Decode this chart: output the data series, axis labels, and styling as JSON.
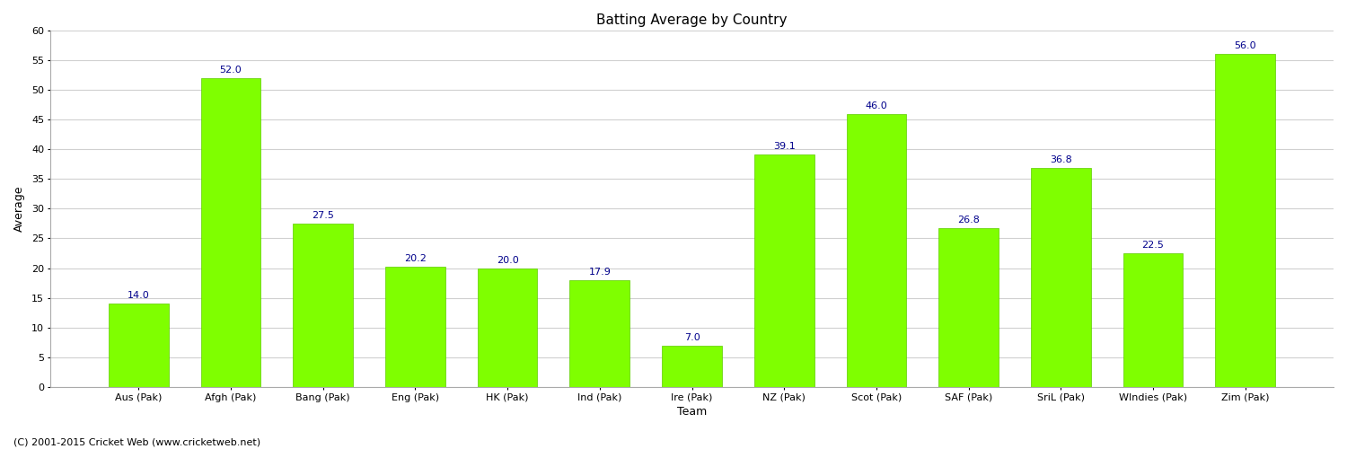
{
  "categories": [
    "Aus (Pak)",
    "Afgh (Pak)",
    "Bang (Pak)",
    "Eng (Pak)",
    "HK (Pak)",
    "Ind (Pak)",
    "Ire (Pak)",
    "NZ (Pak)",
    "Scot (Pak)",
    "SAF (Pak)",
    "SriL (Pak)",
    "WIndies (Pak)",
    "Zim (Pak)"
  ],
  "values": [
    14.0,
    52.0,
    27.5,
    20.2,
    20.0,
    17.9,
    7.0,
    39.1,
    46.0,
    26.8,
    36.8,
    22.5,
    56.0
  ],
  "bar_color": "#7FFF00",
  "bar_edge_color": "#5dcc00",
  "label_color": "#00008B",
  "title": "Batting Average by Country",
  "xlabel": "Team",
  "ylabel": "Average",
  "ylim": [
    0,
    60
  ],
  "yticks": [
    0,
    5,
    10,
    15,
    20,
    25,
    30,
    35,
    40,
    45,
    50,
    55,
    60
  ],
  "background_color": "#ffffff",
  "plot_bg_color": "#ffffff",
  "grid_color": "#d0d0d0",
  "footer": "(C) 2001-2015 Cricket Web (www.cricketweb.net)",
  "title_fontsize": 11,
  "axis_label_fontsize": 9,
  "tick_label_fontsize": 8,
  "bar_label_fontsize": 8,
  "footer_fontsize": 8,
  "bar_width": 0.65
}
